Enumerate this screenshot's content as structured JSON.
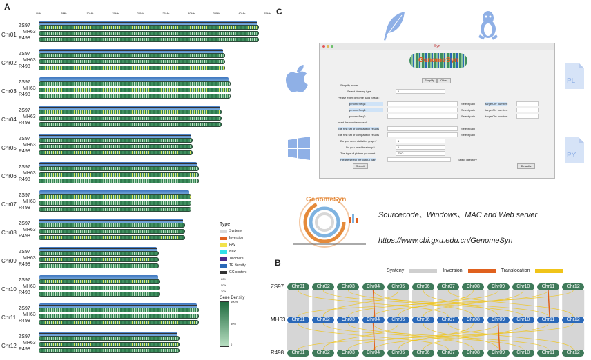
{
  "panels": {
    "a": "A",
    "b": "B",
    "c": "C"
  },
  "panel_a": {
    "axis_ticks": [
      "0Mb",
      "5Mb",
      "10Mb",
      "15Mb",
      "20Mb",
      "25Mb",
      "30Mb",
      "35Mb",
      "40Mb",
      "45Mb"
    ],
    "chromosomes": [
      {
        "name": "Chr01",
        "rows": [
          "ZS97",
          "MH63",
          "R498"
        ],
        "length_mb": 43.2
      },
      {
        "name": "Chr02",
        "rows": [
          "ZS97",
          "MH63",
          "R498"
        ],
        "length_mb": 36.5
      },
      {
        "name": "Chr03",
        "rows": [
          "ZS97",
          "MH63",
          "R498"
        ],
        "length_mb": 37.6
      },
      {
        "name": "Chr04",
        "rows": [
          "ZS97",
          "MH63",
          "R498"
        ],
        "length_mb": 35.8
      },
      {
        "name": "Chr05",
        "rows": [
          "ZS97",
          "MH63",
          "R498"
        ],
        "length_mb": 30.1
      },
      {
        "name": "Chr06",
        "rows": [
          "ZS97",
          "MH63",
          "R498"
        ],
        "length_mb": 31.4
      },
      {
        "name": "Chr07",
        "rows": [
          "ZS97",
          "MH63",
          "R498"
        ],
        "length_mb": 29.9
      },
      {
        "name": "Chr08",
        "rows": [
          "ZS97",
          "MH63",
          "R498"
        ],
        "length_mb": 28.6
      },
      {
        "name": "Chr09",
        "rows": [
          "ZS97",
          "MH63",
          "R498"
        ],
        "length_mb": 23.4
      },
      {
        "name": "Chr10",
        "rows": [
          "ZS97",
          "MH63",
          "R498"
        ],
        "length_mb": 23.7
      },
      {
        "name": "Chr11",
        "rows": [
          "ZS97",
          "MH63",
          "R498"
        ],
        "length_mb": 31.4
      },
      {
        "name": "Chr12",
        "rows": [
          "ZS97",
          "MH63",
          "R498"
        ],
        "length_mb": 27.6
      }
    ],
    "legend": {
      "type_title": "Type",
      "items": [
        {
          "label": "Synteny",
          "color": "#d9d9d9"
        },
        {
          "label": "Inversion",
          "color": "#e0611e"
        },
        {
          "label": "PAV",
          "color": "#f2e24a"
        },
        {
          "label": "NLR",
          "color": "#33e0e8"
        },
        {
          "label": "Telomere",
          "color": "#4a2a8a"
        },
        {
          "label": "TE density",
          "color": "#2a68b8"
        },
        {
          "label": "GC content",
          "color": "#333333"
        }
      ],
      "te_tick": "60%",
      "gc_ticks": [
        "50%",
        "30%"
      ],
      "density_title": "Gene Density",
      "density_ticks": [
        "100%",
        "50%",
        "0"
      ]
    }
  },
  "panel_c": {
    "app_title": "GenomeSyn",
    "window_title": "Syn",
    "tabs": [
      "Simplify",
      "Other"
    ],
    "form": {
      "simplify_mode": "Simplify mode",
      "drawing_type": "Select drawing type",
      "drawing_value": "1",
      "genome_data": "Please enter genome data (fasta):",
      "genome_fields": [
        "genomeSeq1:",
        "genomeSeq2:",
        "genomeSeq3:"
      ],
      "select_path": "Select path",
      "target_fields": [
        "targetChr number:",
        "targetChr number:",
        "targetChr number:"
      ],
      "input_numbers": "Input the numbers result",
      "first_set": "The first set of comparison results",
      "second_set": "The first set of comparison results",
      "statistics": "Do you need statistics graph?",
      "statistics_value": "1",
      "heatmap": "Do you need heatmap?",
      "heatmap_value": "1",
      "picture_type": "The type of picture you want",
      "picture_value": "SVG",
      "output_path": "Please select the output path",
      "select_directory": "Select directory",
      "submit": "Submit",
      "defaults": "Defaults"
    },
    "logo_text": "GenomeSyn",
    "caption_1": "Sourcecode、Windows、MAC and Web server",
    "caption_2": "https://www.cbi.gxu.edu.cn/GenomeSyn",
    "icons": {
      "left": [
        "apple-icon",
        "windows-icon"
      ],
      "top": [
        "feather-icon",
        "linux-icon"
      ],
      "right": [
        "pl-file-icon",
        "py-file-icon"
      ]
    },
    "file_labels": {
      "pl": "PL",
      "py": "PY"
    }
  },
  "panel_b": {
    "legend": [
      {
        "label": "Synteny",
        "color": "#cfcfcf"
      },
      {
        "label": "Inversion",
        "color": "#e0611e"
      },
      {
        "label": "Translocation",
        "color": "#f0c419"
      }
    ],
    "rows": [
      {
        "name": "ZS97",
        "color": "#3f7a5a"
      },
      {
        "name": "MH63",
        "color": "#2a68b8"
      },
      {
        "name": "R498",
        "color": "#3f7a5a"
      }
    ],
    "chromosomes": [
      "Chr01",
      "Chr02",
      "Chr03",
      "Chr04",
      "Chr05",
      "Chr06",
      "Chr07",
      "Chr08",
      "Chr09",
      "Chr10",
      "Chr11",
      "Chr12"
    ]
  }
}
